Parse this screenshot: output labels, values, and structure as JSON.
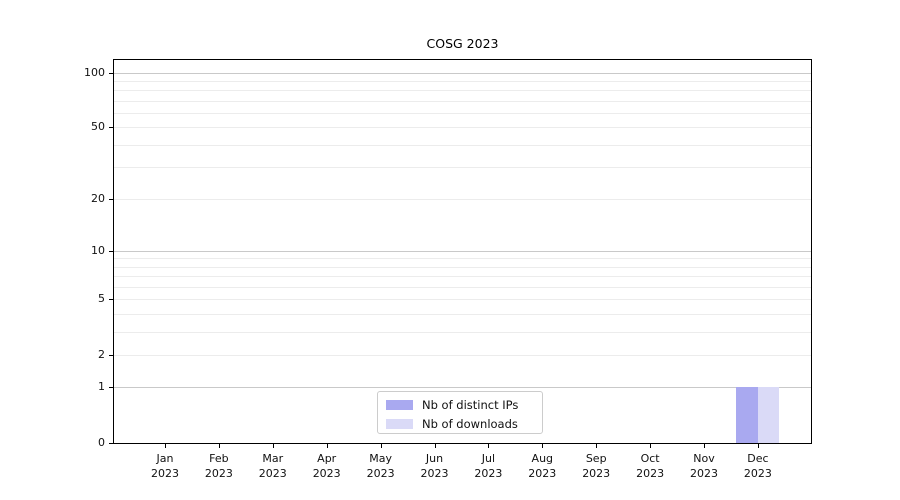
{
  "chart_data": {
    "type": "bar",
    "title": "COSG 2023",
    "categories": [
      {
        "month": "Jan",
        "year": "2023"
      },
      {
        "month": "Feb",
        "year": "2023"
      },
      {
        "month": "Mar",
        "year": "2023"
      },
      {
        "month": "Apr",
        "year": "2023"
      },
      {
        "month": "May",
        "year": "2023"
      },
      {
        "month": "Jun",
        "year": "2023"
      },
      {
        "month": "Jul",
        "year": "2023"
      },
      {
        "month": "Aug",
        "year": "2023"
      },
      {
        "month": "Sep",
        "year": "2023"
      },
      {
        "month": "Oct",
        "year": "2023"
      },
      {
        "month": "Nov",
        "year": "2023"
      },
      {
        "month": "Dec",
        "year": "2023"
      }
    ],
    "series": [
      {
        "name": "Nb of distinct IPs",
        "color": "#a9a9f0",
        "values": [
          0,
          0,
          0,
          0,
          0,
          0,
          0,
          0,
          0,
          0,
          0,
          1
        ]
      },
      {
        "name": "Nb of downloads",
        "color": "#dadaf7",
        "values": [
          0,
          0,
          0,
          0,
          0,
          0,
          0,
          0,
          0,
          0,
          0,
          1
        ]
      }
    ],
    "xlabel": "",
    "ylabel": "",
    "yscale": "log1p",
    "ylim": [
      0,
      117
    ],
    "yticks": [
      0,
      1,
      2,
      5,
      10,
      20,
      50,
      100
    ],
    "gridlines": {
      "major": [
        1,
        10,
        100
      ],
      "minor": [
        2,
        3,
        4,
        5,
        6,
        7,
        8,
        9,
        20,
        30,
        40,
        50,
        60,
        70,
        80,
        90
      ]
    },
    "legend": {
      "position": "lower center"
    }
  }
}
